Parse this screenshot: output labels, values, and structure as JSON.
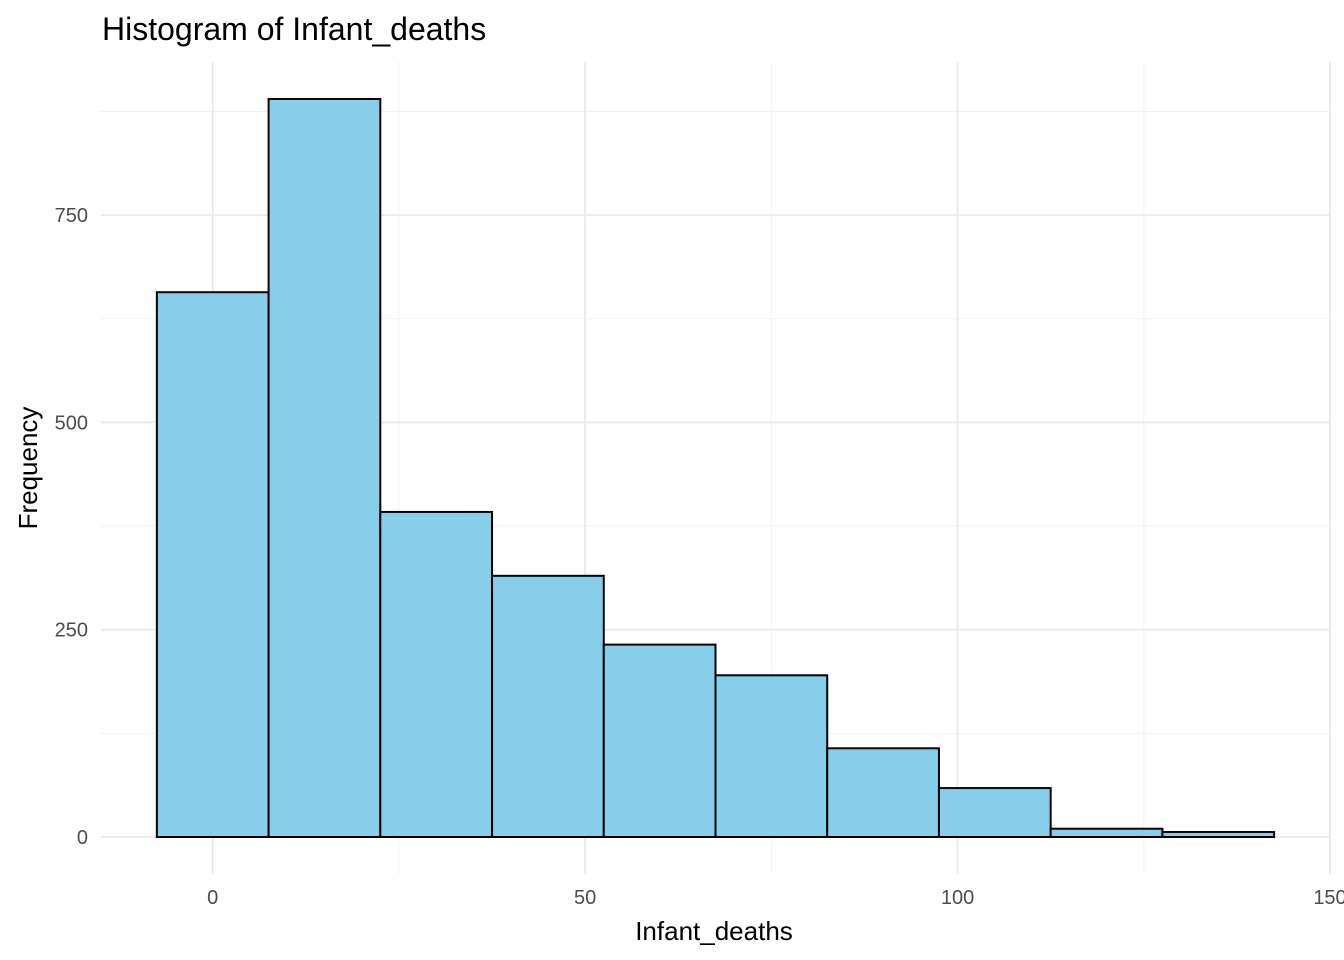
{
  "chart_data": {
    "type": "bar",
    "title": "Histogram of Infant_deaths",
    "xlabel": "Infant_deaths",
    "ylabel": "Frequency",
    "bin_edges": [
      -7.5,
      7.5,
      22.5,
      37.5,
      52.5,
      67.5,
      82.5,
      97.5,
      112.5,
      127.5,
      142.5
    ],
    "values": [
      657,
      890,
      392,
      315,
      232,
      195,
      107,
      59,
      10,
      6
    ],
    "xlim": [
      -15,
      150
    ],
    "ylim": [
      -40,
      890
    ],
    "x_ticks": [
      0,
      50,
      100,
      150
    ],
    "x_tick_labels": [
      "0",
      "50",
      "100",
      "150"
    ],
    "y_ticks": [
      0,
      250,
      500,
      750
    ],
    "y_tick_labels": [
      "0",
      "250",
      "500",
      "750"
    ],
    "grid": true,
    "legend": "none",
    "fill_color": "#87CEEB",
    "stroke_color": "#000000",
    "grid_major_color": "#ebebeb",
    "grid_minor_color": "#f2f2f2"
  }
}
